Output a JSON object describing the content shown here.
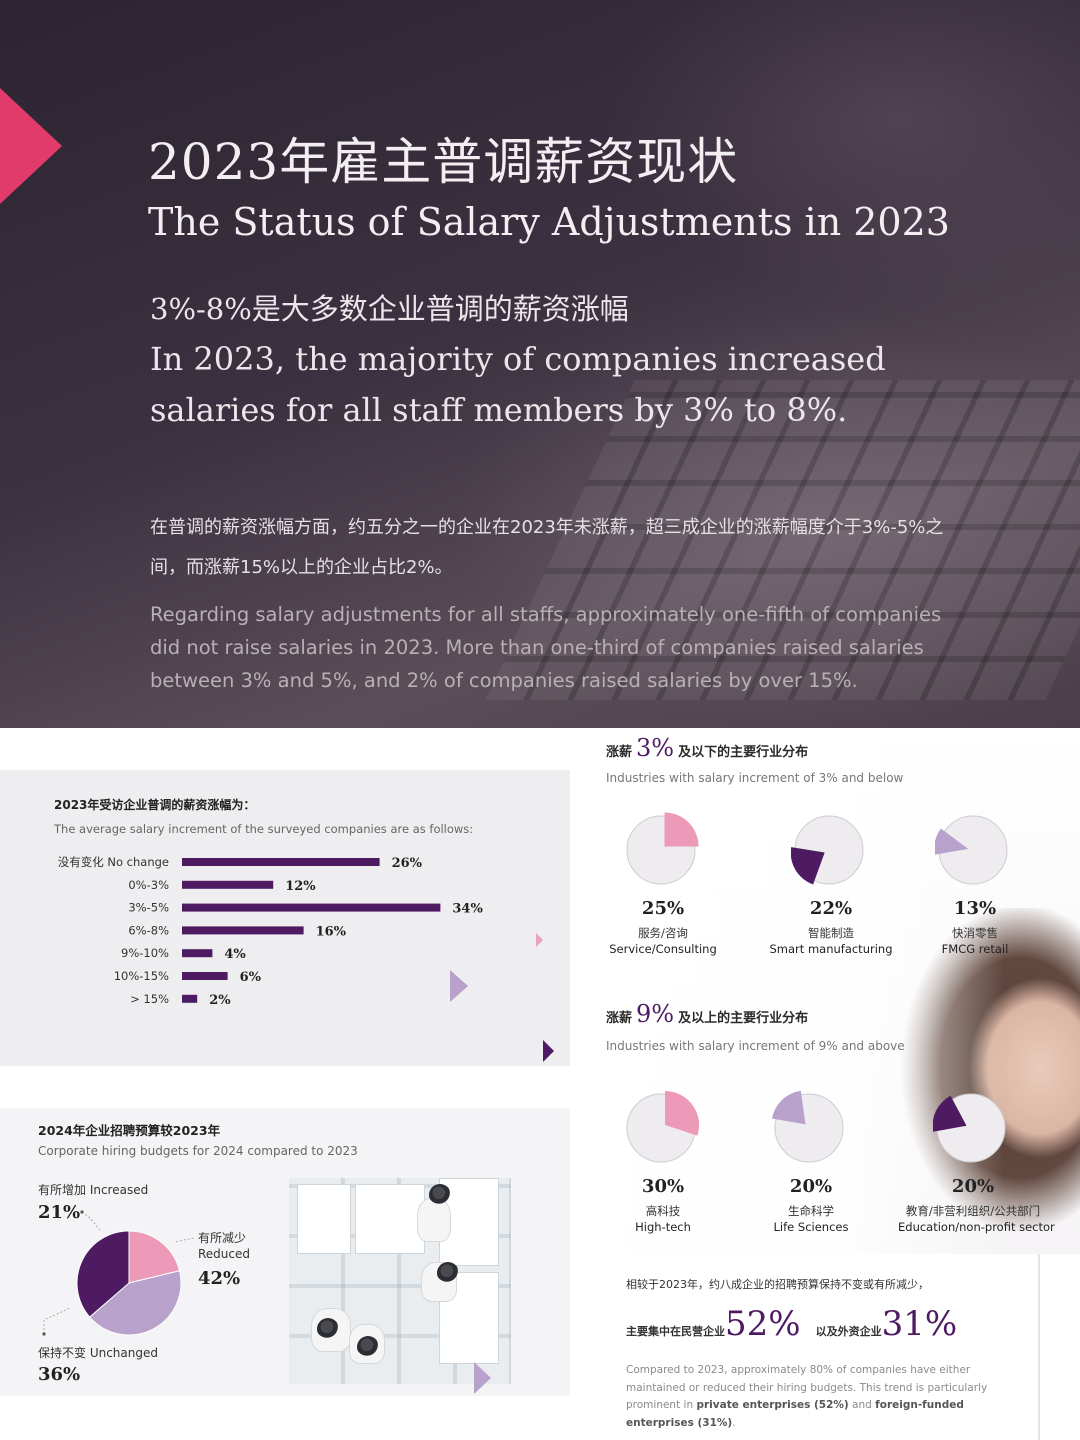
{
  "hero": {
    "title_cn": "2023年雇主普调薪资现状",
    "title_en": "The Status of Salary Adjustments in 2023",
    "subtitle_cn": "3%-8%是大多数企业普调的薪资涨幅",
    "subtitle_en": "In 2023, the majority of companies increased salaries for all staff members by 3% to 8%.",
    "paragraph_cn": "在普调的薪资涨幅方面，约五分之一的企业在2023年未涨薪，超三成企业的涨薪幅度介于3%-5%之间，而涨薪15%以上的企业占比2%。",
    "paragraph_en": "Regarding salary adjustments for all staffs, approximately one-fifth of companies did not raise salaries in 2023. More than one-third of companies raised salaries between 3% and 5%, and 2% of companies raised salaries by over 15%."
  },
  "salary_increment": {
    "title_cn": "2023年受访企业普调的薪资涨幅为：",
    "title_en": "The average salary increment of the surveyed companies are as follows:"
  },
  "industry": {
    "low": {
      "prefix_cn": "涨薪",
      "big": "3%",
      "suffix_cn": "及以下的主要行业分布",
      "title_en": "Industries with salary increment of 3% and below",
      "items": [
        {
          "pct_label": "25%",
          "cn": "服务/咨询",
          "en": "Service/Consulting"
        },
        {
          "pct_label": "22%",
          "cn": "智能制造",
          "en": "Smart manufacturing"
        },
        {
          "pct_label": "13%",
          "cn": "快消零售",
          "en": "FMCG retail"
        }
      ]
    },
    "high": {
      "prefix_cn": "涨薪",
      "big": "9%",
      "suffix_cn": "及以上的主要行业分布",
      "title_en": "Industries with salary increment of 9% and above",
      "items": [
        {
          "pct_label": "30%",
          "cn": "高科技",
          "en": "High-tech"
        },
        {
          "pct_label": "20%",
          "cn": "生命科学",
          "en": "Life Sciences"
        },
        {
          "pct_label": "20%",
          "cn": "教育/非营利组织/公共部门",
          "en": "Education/non-profit sector"
        }
      ]
    }
  },
  "hiring": {
    "title_cn": "2024年企业招聘预算较2023年",
    "title_en": "Corporate hiring budgets for 2024 compared to 2023",
    "increased": {
      "label": "有所增加 Increased",
      "pct": "21%"
    },
    "reduced": {
      "label_cn": "有所减少",
      "label_en": "Reduced",
      "pct": "42%"
    },
    "unchanged": {
      "label": "保持不变 Unchanged",
      "pct": "36%"
    }
  },
  "budget_text": {
    "line1": "相较于2023年，约八成企业的招聘预算保持不变或有所减少，",
    "line2_a": "主要集中在民营企业",
    "line2_b": "52%",
    "line2_c": "以及外资企业",
    "line2_d": "31%",
    "para_1": "Compared to 2023, approximately 80% of companies have either maintained or reduced their hiring budgets. This trend is particularly prominent in ",
    "para_b1": "private enterprises (52%)",
    "para_2": " and ",
    "para_b2": "foreign-funded enterprises (31%)",
    "para_3": "."
  },
  "colors": {
    "accent_purple": "#4e1b63",
    "pink": "#ec9ab8",
    "lavender": "#b8a2cc",
    "hero_triangle": "#e03b6a"
  },
  "chart_data": [
    {
      "type": "bar",
      "orientation": "horizontal",
      "title": "2023年受访企业普调的薪资涨幅为：",
      "subtitle": "The average salary increment of the surveyed companies are as follows:",
      "categories": [
        "没有变化 No change",
        "0%-3%",
        "3%-5%",
        "6%-8%",
        "9%-10%",
        "10%-15%",
        "> 15%"
      ],
      "values": [
        26,
        12,
        34,
        16,
        4,
        6,
        2
      ],
      "value_labels": [
        "26%",
        "12%",
        "34%",
        "16%",
        "4%",
        "6%",
        "2%"
      ],
      "color": "#4e1b63"
    },
    {
      "type": "pie",
      "categories": [
        "Service/Consulting",
        "Smart manufacturing",
        "FMCG retail"
      ],
      "values": [
        25,
        22,
        13
      ],
      "colors": [
        "#ec9ab8",
        "#4e1b63",
        "#b8a2cc"
      ]
    },
    {
      "type": "pie",
      "categories": [
        "High-tech",
        "Life Sciences",
        "Education/non-profit sector"
      ],
      "values": [
        30,
        20,
        20
      ],
      "colors": [
        "#ec9ab8",
        "#b8a2cc",
        "#4e1b63"
      ]
    },
    {
      "type": "pie",
      "title": "2024年企业招聘预算较2023年",
      "categories": [
        "有所增加 Increased",
        "有所减少 Reduced",
        "保持不变 Unchanged"
      ],
      "values": [
        21,
        42,
        36
      ],
      "colors": [
        "#ec9ab8",
        "#b8a2cc",
        "#4e1b63"
      ]
    }
  ]
}
